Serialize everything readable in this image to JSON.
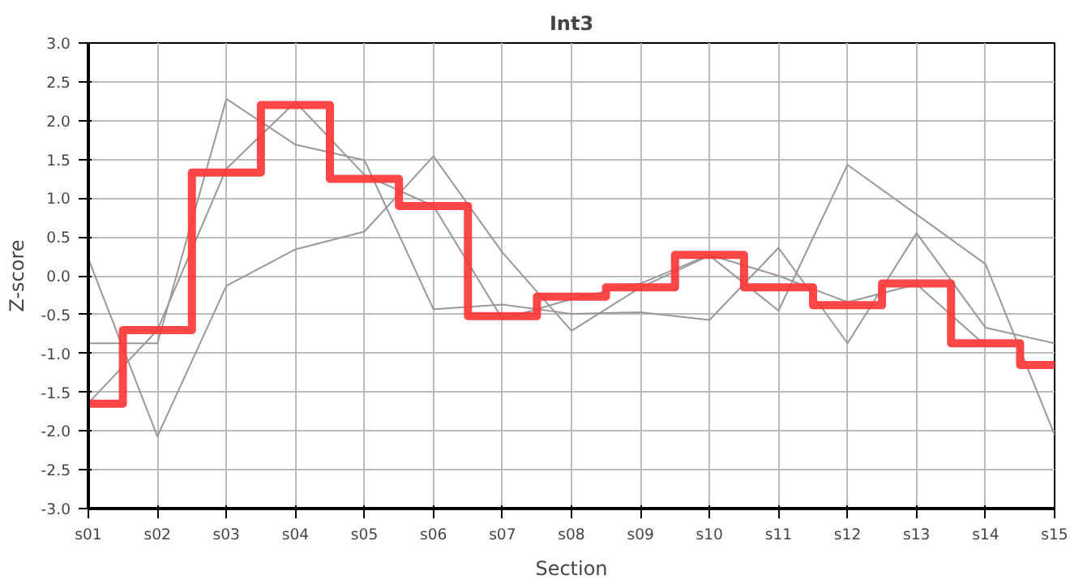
{
  "chart_data": {
    "type": "line",
    "title": "Int3",
    "xlabel": "Section",
    "ylabel": "Z-score",
    "categories": [
      "s01",
      "s02",
      "s03",
      "s04",
      "s05",
      "s06",
      "s07",
      "s08",
      "s09",
      "s10",
      "s11",
      "s12",
      "s13",
      "s14",
      "s15"
    ],
    "ylim": [
      -3.0,
      3.0
    ],
    "yticks": [
      {
        "value": -3,
        "label": "-3.0"
      },
      {
        "value": -2.5,
        "label": "-2.5"
      },
      {
        "value": -2,
        "label": "-2.0"
      },
      {
        "value": -1.5,
        "label": "-1.5"
      },
      {
        "value": -1,
        "label": "-1.0"
      },
      {
        "value": -0.5,
        "label": "-0.5"
      },
      {
        "value": 0,
        "label": "0.0"
      },
      {
        "value": 0.5,
        "label": "0.5"
      },
      {
        "value": 1,
        "label": "1.0"
      },
      {
        "value": 1.5,
        "label": "1.5"
      },
      {
        "value": 2,
        "label": "2.0"
      },
      {
        "value": 2.5,
        "label": "2.5"
      },
      {
        "value": 3,
        "label": "3.0"
      }
    ],
    "grid": true,
    "series": [
      {
        "color": "#999999",
        "values": [
          0.22,
          -2.07,
          -0.13,
          0.34,
          0.57,
          1.54,
          0.3,
          -0.71,
          -0.15,
          0.26,
          -0.45,
          1.43,
          0.79,
          0.15,
          -2.05
        ]
      },
      {
        "color": "#999999",
        "values": [
          -0.87,
          -0.87,
          2.28,
          1.69,
          1.49,
          -0.43,
          -0.37,
          -0.49,
          -0.47,
          -0.57,
          0.36,
          -0.87,
          0.55,
          -0.67,
          -0.87
        ]
      },
      {
        "color": "#999999",
        "values": [
          -1.64,
          -0.7,
          1.38,
          2.24,
          1.3,
          0.9,
          -0.56,
          -0.3,
          -0.1,
          0.27,
          0.0,
          -0.34,
          -0.11,
          -0.9,
          null
        ]
      },
      {
        "type": "step",
        "color": "#ff3333",
        "values": [
          -1.65,
          -0.7,
          1.33,
          2.2,
          1.25,
          0.9,
          -0.52,
          -0.27,
          -0.15,
          0.27,
          -0.15,
          -0.38,
          -0.1,
          -0.87,
          -1.15
        ]
      }
    ]
  }
}
